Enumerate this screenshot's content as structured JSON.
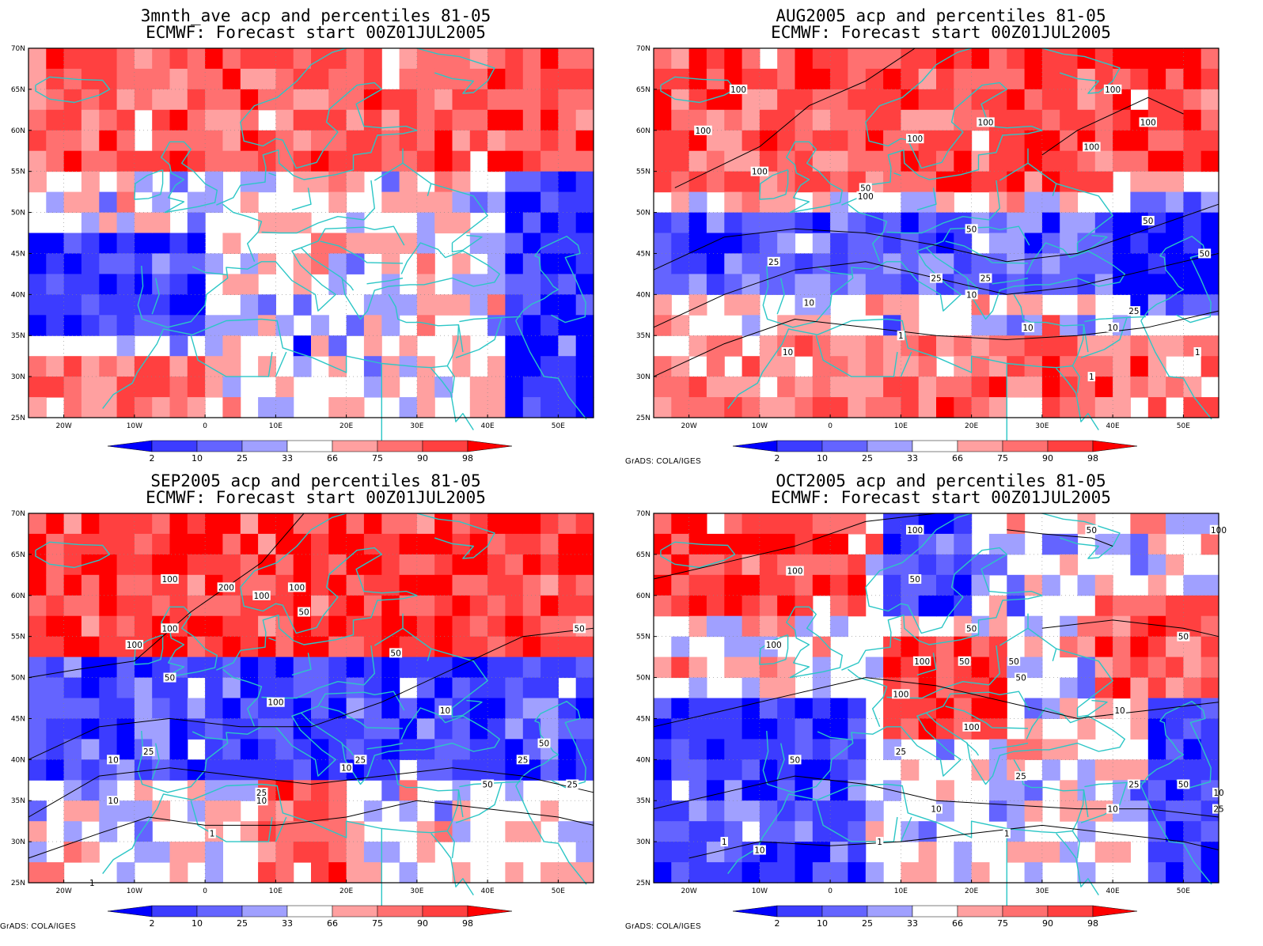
{
  "panels": [
    {
      "title_line1": "3mnth_ave acp and percentiles 81-05",
      "title_line2": "ECMWF: Forecast start 00Z01JUL2005",
      "contour_labels": [],
      "credit": ""
    },
    {
      "title_line1": "AUG2005 acp and percentiles 81-05",
      "title_line2": "ECMWF: Forecast start 00Z01JUL2005",
      "contour_labels": [
        "100",
        "100",
        "100",
        "100",
        "100",
        "100",
        "100",
        "100",
        "100",
        "50",
        "50",
        "50",
        "50",
        "25",
        "25",
        "25",
        "10",
        "10",
        "10",
        "10",
        "1",
        "1",
        "1",
        "25",
        "10"
      ],
      "credit": "GrADS: COLA/IGES"
    },
    {
      "title_line1": "SEP2005 acp and percentiles 81-05",
      "title_line2": "ECMWF: Forecast start 00Z01JUL2005",
      "contour_labels": [
        "100",
        "100",
        "200",
        "100",
        "100",
        "100",
        "50",
        "50",
        "50",
        "50",
        "25",
        "10",
        "10",
        "25",
        "10",
        "25",
        "50",
        "25",
        "10",
        "10",
        "1",
        "1",
        "50",
        "25",
        "100"
      ],
      "credit": "GrADS: COLA/IGES"
    },
    {
      "title_line1": "OCT2005 acp and percentiles 81-05",
      "title_line2": "ECMWF: Forecast start 00Z01JUL2005",
      "contour_labels": [
        "100",
        "100",
        "50",
        "50",
        "100",
        "100",
        "50",
        "100",
        "100",
        "100",
        "50",
        "50",
        "50",
        "10",
        "50",
        "25",
        "50",
        "25",
        "10",
        "10",
        "10",
        "1",
        "1",
        "1",
        "25",
        "50",
        "10",
        "25"
      ],
      "credit": "GrADS: COLA/IGES"
    }
  ],
  "axes": {
    "lat_labels": [
      "70N",
      "65N",
      "60N",
      "55N",
      "50N",
      "45N",
      "40N",
      "35N",
      "30N",
      "25N"
    ],
    "lon_labels": [
      "20W",
      "10W",
      "0",
      "10E",
      "20E",
      "30E",
      "40E",
      "50E"
    ]
  },
  "colorbar": {
    "labels": [
      "2",
      "10",
      "25",
      "33",
      "66",
      "75",
      "90",
      "98"
    ],
    "colors": [
      "#0000ff",
      "#3c3cff",
      "#6464ff",
      "#a0a0ff",
      "#ffffff",
      "#ffa0a0",
      "#ff7070",
      "#ff4040",
      "#ff0000"
    ]
  },
  "colors": {
    "coast": "#2cc6c6",
    "contour": "#000000"
  }
}
